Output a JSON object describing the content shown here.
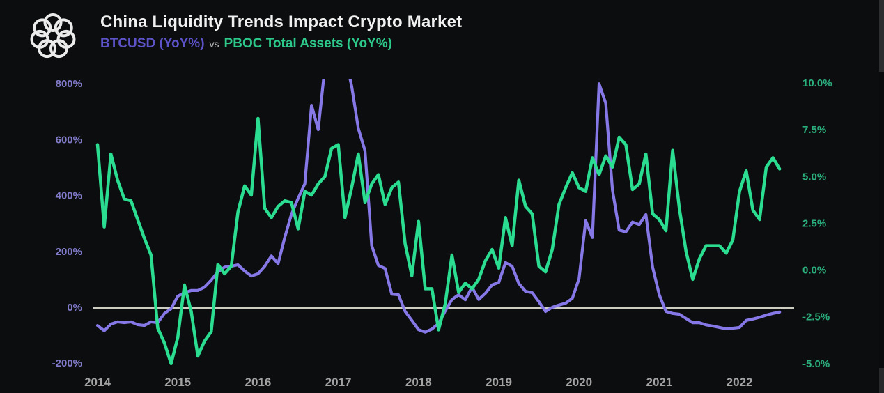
{
  "header": {
    "title": "China Liquidity Trends Impact Crypto Market",
    "subtitle": {
      "series1": "BTCUSD (YoY%)",
      "separator": "vs",
      "series2": "PBOC Total Assets (YoY%)"
    }
  },
  "colors": {
    "background": "#0c0d0f",
    "title_text": "#f1f1f1",
    "btc_line": "#8678e6",
    "btc_subtitle_text": "#5d53c8",
    "btc_axis_text": "#807ac9",
    "pboc_line": "#2bdd90",
    "pboc_subtitle_text": "#2cc98b",
    "pboc_axis_text": "#2aaf7d",
    "zero_line": "#cfccc2",
    "year_label_text": "#a3a3a3",
    "logo": "#ebebeb"
  },
  "chart_data": {
    "type": "line",
    "title": "China Liquidity Trends Impact Crypto Market",
    "subtitle": "BTCUSD (YoY%) vs PBOC Total Assets (YoY%)",
    "grid": "off",
    "legend_position": "subtitle-top-left",
    "x_first": "2014-01",
    "x_last": "2022-07",
    "x_step": "1 month",
    "x_monthly_points": 103,
    "x_year_ticks": [
      "2014",
      "2015",
      "2016",
      "2017",
      "2018",
      "2019",
      "2020",
      "2021",
      "2022"
    ],
    "left_axis": {
      "series": "BTCUSD (YoY%)",
      "ticks": [
        "800%",
        "600%",
        "400%",
        "200%",
        "0%",
        "-200%"
      ],
      "tick_values": [
        800,
        600,
        400,
        200,
        0,
        -200
      ],
      "range": [
        -200,
        800
      ],
      "note": "purple line clipped at top where values exceed 800%"
    },
    "right_axis": {
      "series": "PBOC Total Assets (YoY%)",
      "ticks": [
        "10.0%",
        "7.5%",
        "5.0%",
        "2.5%",
        "0.0%",
        "-2.5%",
        "-5.0%"
      ],
      "tick_values": [
        10,
        7.5,
        5,
        2.5,
        0,
        -2.5,
        -5
      ],
      "range": [
        -5,
        10
      ]
    },
    "zero_line_axis": "left",
    "series": [
      {
        "name": "BTCUSD (YoY%)",
        "axis": "left",
        "color": "#8678e6",
        "values": [
          -65,
          -84,
          -60,
          -52,
          -55,
          -52,
          -62,
          -65,
          -52,
          -55,
          -22,
          -5,
          40,
          52,
          60,
          60,
          72,
          97,
          127,
          144,
          147,
          152,
          130,
          112,
          120,
          147,
          184,
          156,
          250,
          333,
          390,
          442,
          723,
          636,
          860,
          940,
          950,
          900,
          792,
          640,
          560,
          221,
          150,
          139,
          47,
          45,
          -15,
          -47,
          -80,
          -89,
          -78,
          -58,
          -13,
          28,
          45,
          27,
          72,
          28,
          50,
          80,
          89,
          160,
          147,
          85,
          57,
          52,
          20,
          -15,
          0,
          8,
          15,
          32,
          102,
          310,
          250,
          800,
          730,
          420,
          276,
          270,
          305,
          296,
          332,
          144,
          45,
          -15,
          -22,
          -25,
          -40,
          -55,
          -55,
          -63,
          -67,
          -72,
          -77,
          -75,
          -72,
          -47,
          -42,
          -36,
          -28,
          -22,
          -17
        ]
      },
      {
        "name": "PBOC Total Assets (YoY%)",
        "axis": "right",
        "color": "#2bdd90",
        "values": [
          6.7,
          2.3,
          6.2,
          4.8,
          3.8,
          3.7,
          2.7,
          1.7,
          0.8,
          -3.1,
          -3.9,
          -5.0,
          -3.6,
          -0.8,
          -2.2,
          -4.6,
          -3.8,
          -3.3,
          0.3,
          -0.2,
          0.2,
          3.1,
          4.5,
          4.0,
          8.1,
          3.3,
          2.8,
          3.4,
          3.7,
          3.6,
          2.2,
          4.2,
          4.0,
          4.6,
          5.0,
          6.5,
          6.7,
          2.8,
          4.4,
          6.2,
          3.6,
          4.6,
          5.1,
          3.5,
          4.4,
          4.7,
          1.4,
          -0.3,
          2.6,
          -1.0,
          -1.0,
          -3.2,
          -1.8,
          0.8,
          -1.2,
          -0.7,
          -1.0,
          -0.5,
          0.5,
          1.1,
          0.1,
          2.8,
          1.3,
          4.8,
          3.4,
          3.0,
          0.2,
          -0.1,
          1.1,
          3.5,
          4.4,
          5.2,
          4.4,
          4.2,
          6.0,
          5.1,
          6.1,
          5.5,
          7.1,
          6.7,
          4.3,
          4.6,
          6.2,
          3.0,
          2.7,
          2.1,
          6.4,
          3.3,
          1.0,
          -0.5,
          0.6,
          1.3,
          1.3,
          1.3,
          0.9,
          1.6,
          4.2,
          5.3,
          3.2,
          2.7,
          5.5,
          6.0,
          5.4
        ]
      }
    ]
  }
}
